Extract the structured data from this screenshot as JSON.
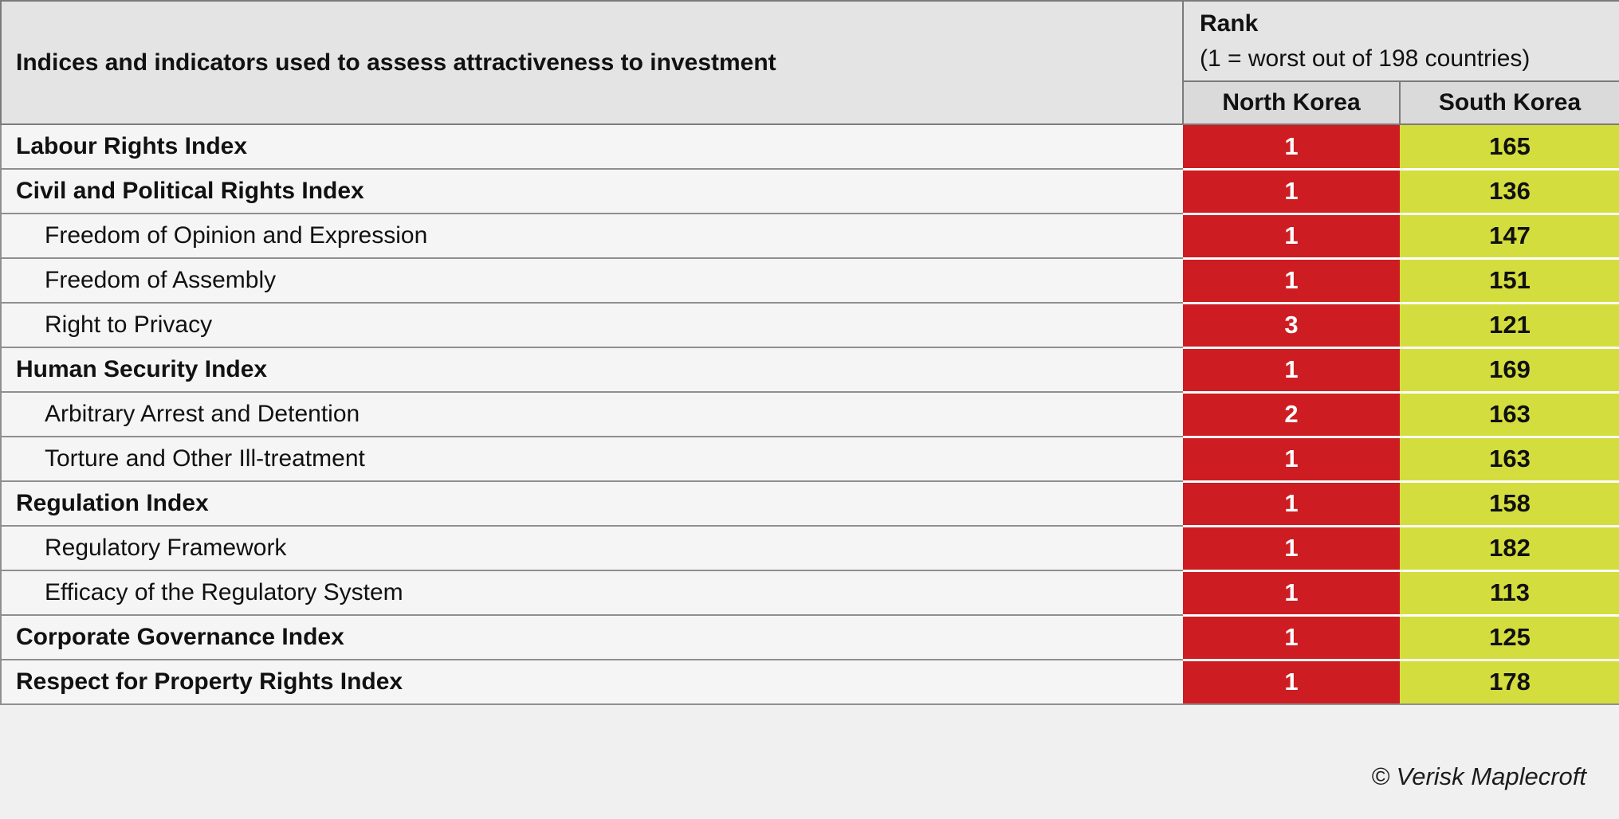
{
  "header": {
    "title": "Indices and indicators used to assess attractiveness to investment",
    "rank_label": "Rank",
    "rank_note": "(1 = worst out of 198 countries)",
    "country_col_1": "North Korea",
    "country_col_2": "South Korea"
  },
  "rows": [
    {
      "label": "Labour Rights Index",
      "style": "index",
      "nk": "1",
      "sk": "165"
    },
    {
      "label": "Civil and Political Rights Index",
      "style": "index",
      "nk": "1",
      "sk": "136"
    },
    {
      "label": "Freedom of Opinion and Expression",
      "style": "sub",
      "nk": "1",
      "sk": "147"
    },
    {
      "label": "Freedom of Assembly",
      "style": "sub",
      "nk": "1",
      "sk": "151"
    },
    {
      "label": "Right to Privacy",
      "style": "sub",
      "nk": "3",
      "sk": "121"
    },
    {
      "label": "Human Security Index",
      "style": "index",
      "nk": "1",
      "sk": "169"
    },
    {
      "label": "Arbitrary Arrest and Detention",
      "style": "sub",
      "nk": "2",
      "sk": "163"
    },
    {
      "label": "Torture and Other Ill-treatment",
      "style": "sub",
      "nk": "1",
      "sk": "163"
    },
    {
      "label": "Regulation Index",
      "style": "index",
      "nk": "1",
      "sk": "158"
    },
    {
      "label": "Regulatory Framework",
      "style": "sub",
      "nk": "1",
      "sk": "182"
    },
    {
      "label": "Efficacy of the Regulatory System",
      "style": "sub",
      "nk": "1",
      "sk": "113"
    },
    {
      "label": "Corporate Governance Index",
      "style": "index",
      "nk": "1",
      "sk": "125"
    },
    {
      "label": "Respect for Property Rights Index",
      "style": "index",
      "nk": "1",
      "sk": "178"
    }
  ],
  "footer": {
    "copyright": "© Verisk Maplecroft"
  },
  "colors": {
    "north_korea_bg": "#cd1c22",
    "north_korea_text": "#ffffff",
    "south_korea_bg": "#d4dd3e",
    "south_korea_text": "#101010",
    "header_bg": "#e4e4e4",
    "subheader_bg": "#dadada",
    "row_bg": "#f5f5f5",
    "page_bg": "#f0f0f0",
    "border_dark": "#7b7b7b",
    "border_mid": "#8f8f8f"
  },
  "chart_data": {
    "type": "table",
    "title": "Indices and indicators used to assess attractiveness to investment",
    "rank_note": "(1 = worst out of 198 countries)",
    "categories": [
      "Labour Rights Index",
      "Civil and Political Rights Index",
      "Freedom of Opinion and Expression",
      "Freedom of Assembly",
      "Right to Privacy",
      "Human Security Index",
      "Arbitrary Arrest and Detention",
      "Torture and Other Ill-treatment",
      "Regulation Index",
      "Regulatory Framework",
      "Efficacy of the Regulatory System",
      "Corporate Governance Index",
      "Respect for Property Rights Index"
    ],
    "series": [
      {
        "name": "North Korea",
        "values": [
          1,
          1,
          1,
          1,
          3,
          1,
          2,
          1,
          1,
          1,
          1,
          1,
          1
        ]
      },
      {
        "name": "South Korea",
        "values": [
          165,
          136,
          147,
          151,
          121,
          169,
          163,
          163,
          158,
          182,
          113,
          125,
          178
        ]
      }
    ],
    "value_range": [
      1,
      198
    ],
    "source": "© Verisk Maplecroft"
  }
}
